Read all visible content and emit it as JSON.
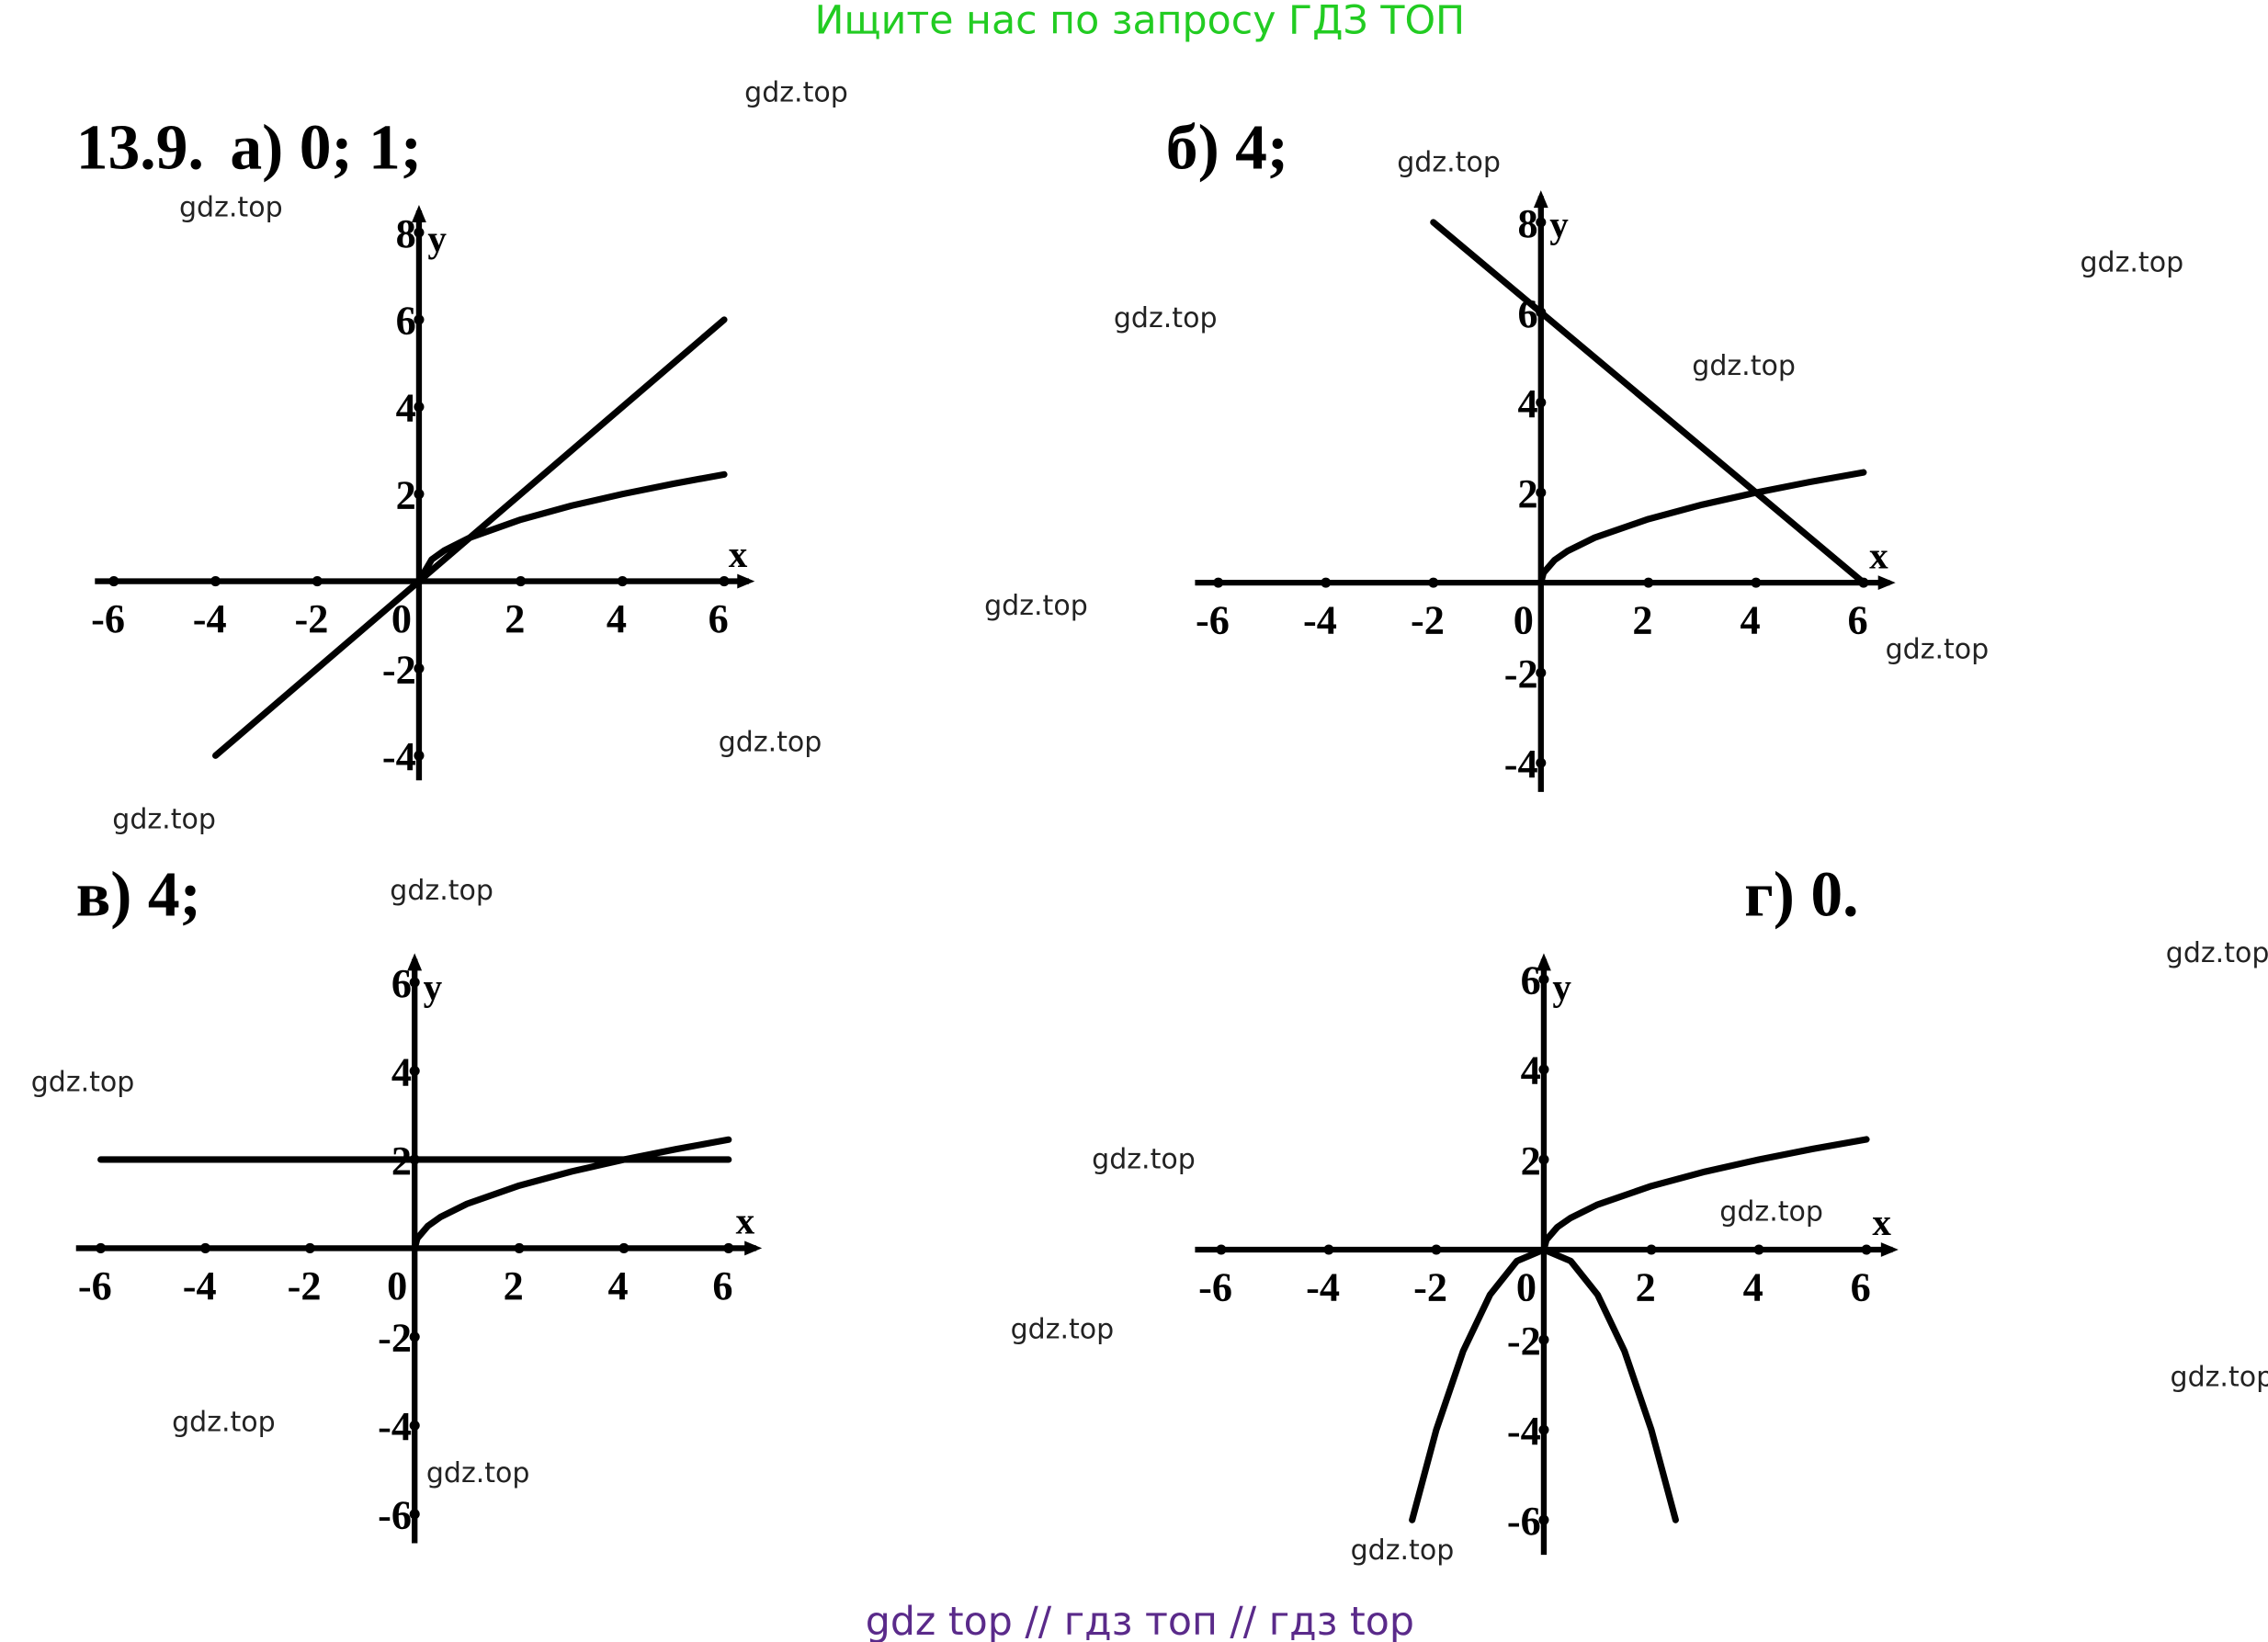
{
  "header": {
    "text": "Ищите нас по запросу ГДЗ ТОП"
  },
  "footer": {
    "text": "gdz top  //  гдз топ  //  гдз top"
  },
  "problem": {
    "number": "13.9."
  },
  "watermark": "gdz.top",
  "colors": {
    "header": "#22cc22",
    "footer": "#5a2a8a",
    "ink": "#000000"
  },
  "chart_data": [
    {
      "type": "line",
      "answer": "а) 0; 1;",
      "xlabel": "x",
      "ylabel": "y",
      "xticks": [
        -6,
        -4,
        -2,
        0,
        2,
        4,
        6
      ],
      "yticks": [
        8,
        6,
        4,
        2,
        -2,
        -4
      ],
      "xlim": [
        -6,
        6
      ],
      "ylim": [
        -4,
        8
      ],
      "series": [
        {
          "name": "y=x",
          "points": [
            [
              -4,
              -4
            ],
            [
              6,
              6
            ]
          ]
        },
        {
          "name": "y=sqrt(x)",
          "points": [
            [
              0,
              0
            ],
            [
              0.25,
              0.5
            ],
            [
              0.5,
              0.707
            ],
            [
              1,
              1
            ],
            [
              2,
              1.414
            ],
            [
              3,
              1.732
            ],
            [
              4,
              2
            ],
            [
              5,
              2.236
            ],
            [
              6,
              2.449
            ]
          ]
        }
      ]
    },
    {
      "type": "line",
      "answer": "б) 4;",
      "xlabel": "x",
      "ylabel": "y",
      "xticks": [
        -6,
        -4,
        -2,
        0,
        2,
        4,
        6
      ],
      "yticks": [
        8,
        6,
        4,
        2,
        -2,
        -4
      ],
      "xlim": [
        -6,
        6
      ],
      "ylim": [
        -4,
        8
      ],
      "series": [
        {
          "name": "y=6-x",
          "points": [
            [
              -2,
              8
            ],
            [
              6,
              0
            ]
          ]
        },
        {
          "name": "y=sqrt(x)",
          "points": [
            [
              0,
              0
            ],
            [
              0.05,
              0.22
            ],
            [
              0.25,
              0.5
            ],
            [
              0.5,
              0.707
            ],
            [
              1,
              1
            ],
            [
              2,
              1.414
            ],
            [
              3,
              1.732
            ],
            [
              4,
              2
            ],
            [
              5,
              2.236
            ],
            [
              6,
              2.449
            ]
          ]
        }
      ]
    },
    {
      "type": "line",
      "answer": "в) 4;",
      "xlabel": "x",
      "ylabel": "y",
      "xticks": [
        -6,
        -4,
        -2,
        0,
        2,
        4,
        6
      ],
      "yticks": [
        6,
        4,
        2,
        -2,
        -4,
        -6
      ],
      "xlim": [
        -6,
        6
      ],
      "ylim": [
        -6,
        6
      ],
      "series": [
        {
          "name": "y=2",
          "points": [
            [
              -6,
              2
            ],
            [
              6,
              2
            ]
          ]
        },
        {
          "name": "y=sqrt(x)",
          "points": [
            [
              0,
              0
            ],
            [
              0.05,
              0.22
            ],
            [
              0.25,
              0.5
            ],
            [
              0.5,
              0.707
            ],
            [
              1,
              1
            ],
            [
              2,
              1.414
            ],
            [
              3,
              1.732
            ],
            [
              4,
              2
            ],
            [
              5,
              2.236
            ],
            [
              6,
              2.449
            ]
          ]
        }
      ]
    },
    {
      "type": "line",
      "answer": "г) 0.",
      "xlabel": "x",
      "ylabel": "y",
      "xticks": [
        -6,
        -4,
        -2,
        0,
        2,
        4,
        6
      ],
      "yticks": [
        6,
        4,
        2,
        -2,
        -4,
        -6
      ],
      "xlim": [
        -6,
        6
      ],
      "ylim": [
        -6,
        6
      ],
      "series": [
        {
          "name": "y=sqrt(x)",
          "points": [
            [
              0,
              0
            ],
            [
              0.05,
              0.22
            ],
            [
              0.25,
              0.5
            ],
            [
              0.5,
              0.707
            ],
            [
              1,
              1
            ],
            [
              2,
              1.414
            ],
            [
              3,
              1.732
            ],
            [
              4,
              2
            ],
            [
              5,
              2.236
            ],
            [
              6,
              2.449
            ]
          ]
        },
        {
          "name": "y=-x^2",
          "points": [
            [
              -2.45,
              -6
            ],
            [
              -2,
              -4
            ],
            [
              -1.5,
              -2.25
            ],
            [
              -1,
              -1
            ],
            [
              -0.5,
              -0.25
            ],
            [
              0,
              0
            ],
            [
              0.5,
              -0.25
            ],
            [
              1,
              -1
            ],
            [
              1.5,
              -2.25
            ],
            [
              2,
              -4
            ],
            [
              2.45,
              -6
            ]
          ]
        }
      ]
    }
  ]
}
